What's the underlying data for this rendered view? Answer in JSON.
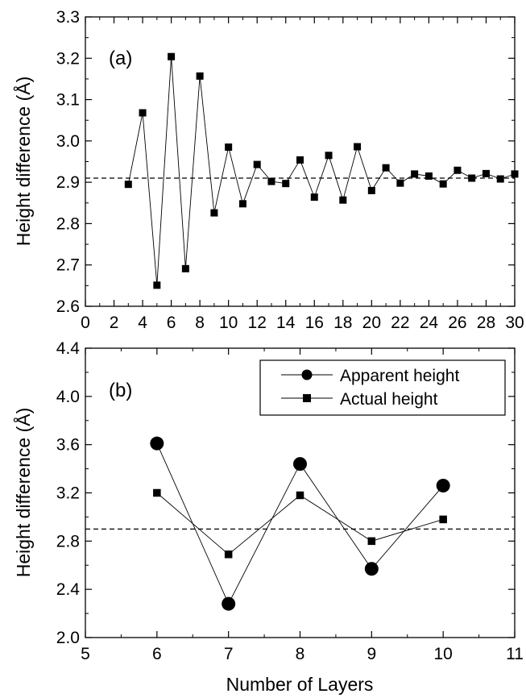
{
  "chart_data": [
    {
      "type": "line",
      "panel_label": "(a)",
      "xlabel": "",
      "ylabel": "Height difference (Å)",
      "xlim": [
        0,
        30
      ],
      "ylim": [
        2.6,
        3.3
      ],
      "xticks": [
        "0",
        "2",
        "4",
        "6",
        "8",
        "10",
        "12",
        "14",
        "16",
        "18",
        "20",
        "22",
        "24",
        "26",
        "28",
        "30"
      ],
      "yticks": [
        "2.6",
        "2.7",
        "2.8",
        "2.9",
        "3.0",
        "3.1",
        "3.2",
        "3.3"
      ],
      "reference_line": 2.91,
      "series": [
        {
          "marker": "square",
          "x": [
            3,
            4,
            5,
            6,
            7,
            8,
            9,
            10,
            11,
            12,
            13,
            14,
            15,
            16,
            17,
            18,
            19,
            20,
            21,
            22,
            23,
            24,
            25,
            26,
            27,
            28,
            29,
            30
          ],
          "y": [
            2.895,
            3.068,
            2.651,
            3.204,
            2.691,
            3.157,
            2.826,
            2.985,
            2.848,
            2.943,
            2.902,
            2.897,
            2.954,
            2.864,
            2.965,
            2.857,
            2.986,
            2.88,
            2.935,
            2.898,
            2.92,
            2.915,
            2.896,
            2.929,
            2.91,
            2.921,
            2.908,
            2.92
          ]
        }
      ],
      "grid": false
    },
    {
      "type": "line",
      "panel_label": "(b)",
      "xlabel": "Number of Layers",
      "ylabel": "Height difference (Å)",
      "xlim": [
        5,
        11
      ],
      "ylim": [
        2.0,
        4.4
      ],
      "xticks": [
        "5",
        "6",
        "7",
        "8",
        "9",
        "10",
        "11"
      ],
      "yticks": [
        "2.0",
        "2.4",
        "2.8",
        "3.2",
        "3.6",
        "4.0",
        "4.4"
      ],
      "reference_line": 2.9,
      "legend_position": "top-right",
      "series": [
        {
          "name": "Apparent height",
          "marker": "circle",
          "x": [
            6,
            7,
            8,
            9,
            10
          ],
          "y": [
            3.61,
            2.28,
            3.44,
            2.57,
            3.26
          ]
        },
        {
          "name": "Actual height",
          "marker": "square",
          "x": [
            6,
            7,
            8,
            9,
            10
          ],
          "y": [
            3.2,
            2.69,
            3.18,
            2.8,
            2.98
          ]
        }
      ],
      "grid": false
    }
  ]
}
